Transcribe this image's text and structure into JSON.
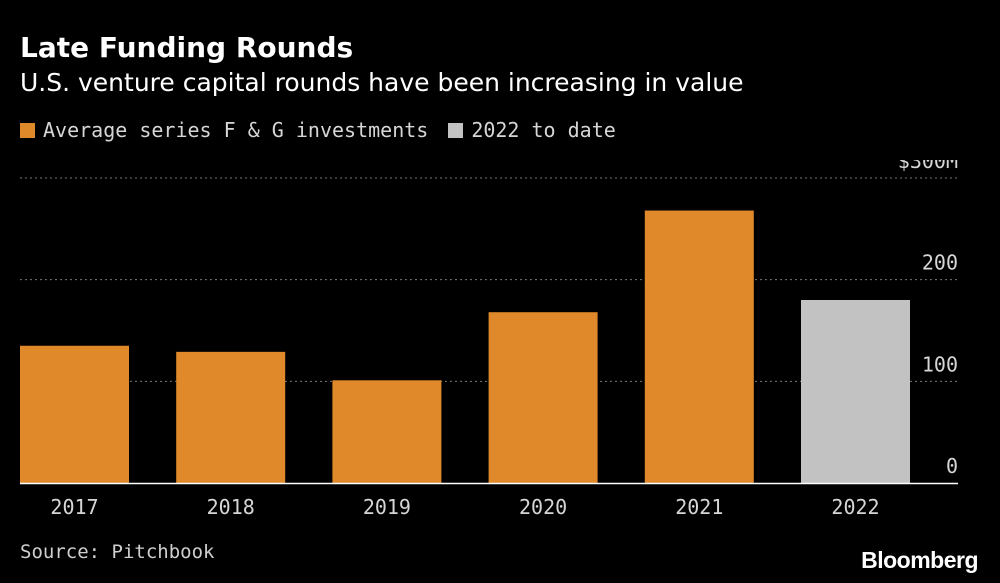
{
  "header": {
    "title": "Late Funding Rounds",
    "subtitle": "U.S. venture capital rounds have been increasing in value"
  },
  "legend": [
    {
      "label": "Average series F & G investments",
      "color": "#e0892a"
    },
    {
      "label": "2022 to date",
      "color": "#c2c2c2"
    }
  ],
  "chart_data": {
    "type": "bar",
    "title": "Late Funding Rounds",
    "subtitle": "U.S. venture capital rounds have been increasing in value",
    "categories": [
      "2017",
      "2018",
      "2019",
      "2020",
      "2021",
      "2022"
    ],
    "values": [
      135,
      129,
      101,
      168,
      268,
      180
    ],
    "bar_colors": [
      "#e0892a",
      "#e0892a",
      "#e0892a",
      "#e0892a",
      "#e0892a",
      "#c2c2c2"
    ],
    "series": [
      {
        "name": "Average series F & G investments",
        "values": [
          135,
          129,
          101,
          168,
          268,
          null
        ]
      },
      {
        "name": "2022 to date",
        "values": [
          null,
          null,
          null,
          null,
          null,
          180
        ]
      }
    ],
    "ylim": [
      0,
      300
    ],
    "yticks": [
      0,
      100,
      200,
      300
    ],
    "ytick_labels": [
      "0",
      "100",
      "200",
      "$300M"
    ],
    "xlabel": "",
    "ylabel": "",
    "grid": true,
    "legend_position": "top-left"
  },
  "footer": {
    "source": "Source: Pitchbook",
    "brand": "Bloomberg"
  },
  "colors": {
    "background": "#000000",
    "orange": "#e0892a",
    "gray": "#c2c2c2",
    "grid": "#777777",
    "text": "#ffffff"
  }
}
